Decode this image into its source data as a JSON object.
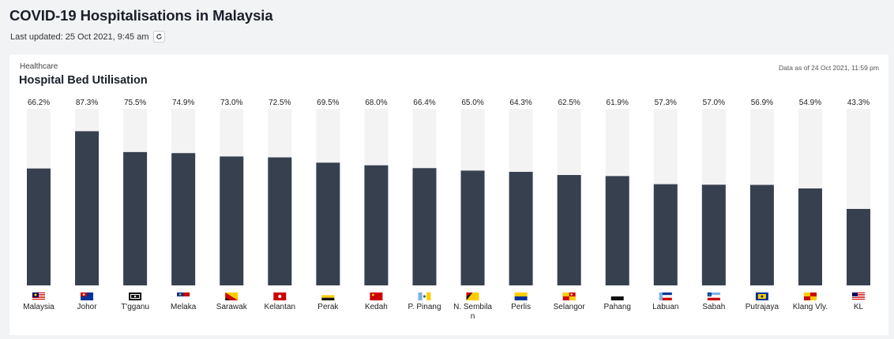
{
  "header": {
    "title": "COVID-19 Hospitalisations in Malaysia",
    "last_updated": "Last updated: 25 Oct 2021, 9:45 am",
    "refresh_icon": "refresh-icon"
  },
  "card": {
    "category": "Healthcare",
    "title": "Hospital Bed Utilisation",
    "data_as_of": "Data as of 24 Oct 2021, 11:59 pm"
  },
  "colors": {
    "bar": "#37404f",
    "track": "#f3f3f4"
  },
  "chart_data": {
    "type": "bar",
    "title": "Hospital Bed Utilisation",
    "ylim": [
      0,
      100
    ],
    "categories": [
      {
        "lines": [
          "Malaysia"
        ],
        "value": 66.2,
        "label": "66.2%",
        "flag": "malaysia"
      },
      {
        "lines": [
          "Johor"
        ],
        "value": 87.3,
        "label": "87.3%",
        "flag": "johor"
      },
      {
        "lines": [
          "T'gganu"
        ],
        "value": 75.5,
        "label": "75.5%",
        "flag": "terengganu"
      },
      {
        "lines": [
          "Melaka"
        ],
        "value": 74.9,
        "label": "74.9%",
        "flag": "melaka"
      },
      {
        "lines": [
          "Sarawak"
        ],
        "value": 73.0,
        "label": "73.0%",
        "flag": "sarawak"
      },
      {
        "lines": [
          "Kelantan"
        ],
        "value": 72.5,
        "label": "72.5%",
        "flag": "kelantan"
      },
      {
        "lines": [
          "Perak"
        ],
        "value": 69.5,
        "label": "69.5%",
        "flag": "perak"
      },
      {
        "lines": [
          "Kedah"
        ],
        "value": 68.0,
        "label": "68.0%",
        "flag": "kedah"
      },
      {
        "lines": [
          "P. Pinang"
        ],
        "value": 66.4,
        "label": "66.4%",
        "flag": "penang"
      },
      {
        "lines": [
          "N. Sembila",
          "n"
        ],
        "value": 65.0,
        "label": "65.0%",
        "flag": "negeri-sembilan"
      },
      {
        "lines": [
          "Perlis"
        ],
        "value": 64.3,
        "label": "64.3%",
        "flag": "perlis"
      },
      {
        "lines": [
          "Selangor"
        ],
        "value": 62.5,
        "label": "62.5%",
        "flag": "selangor"
      },
      {
        "lines": [
          "Pahang"
        ],
        "value": 61.9,
        "label": "61.9%",
        "flag": "pahang"
      },
      {
        "lines": [
          "Labuan"
        ],
        "value": 57.3,
        "label": "57.3%",
        "flag": "labuan"
      },
      {
        "lines": [
          "Sabah"
        ],
        "value": 57.0,
        "label": "57.0%",
        "flag": "sabah"
      },
      {
        "lines": [
          "Putrajaya"
        ],
        "value": 56.9,
        "label": "56.9%",
        "flag": "putrajaya"
      },
      {
        "lines": [
          "Klang Vly."
        ],
        "value": 54.9,
        "label": "54.9%",
        "flag": "klang-valley"
      },
      {
        "lines": [
          "KL"
        ],
        "value": 43.3,
        "label": "43.3%",
        "flag": "kuala-lumpur"
      }
    ]
  }
}
